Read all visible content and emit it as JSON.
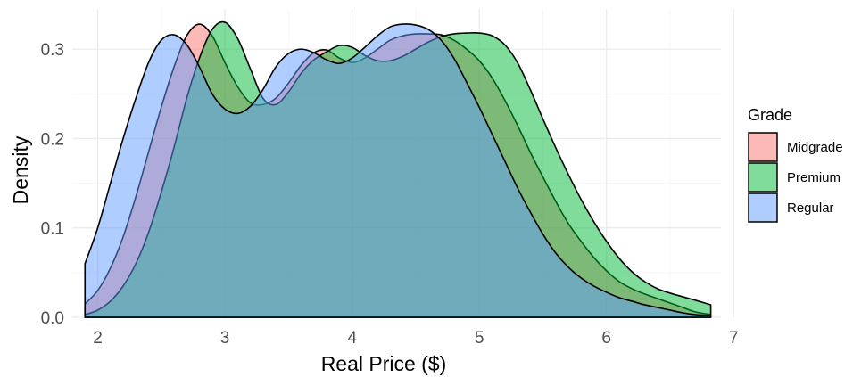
{
  "chart_data": {
    "type": "area",
    "subtype": "density",
    "title": "",
    "xlabel": "Real Price ($)",
    "ylabel": "Density",
    "xlim": [
      1.8,
      6.9
    ],
    "ylim": [
      0,
      0.345
    ],
    "x_ticks": [
      2,
      3,
      4,
      5,
      6,
      7
    ],
    "y_ticks": [
      0.0,
      0.1,
      0.2,
      0.3
    ],
    "y_tick_labels": [
      "0.0",
      "0.1",
      "0.2",
      "0.3"
    ],
    "grid": true,
    "legend": {
      "title": "Grade",
      "position": "right"
    },
    "fill_opacity": 0.5,
    "series": [
      {
        "name": "Midgrade",
        "color": "#F8766D",
        "x": [
          1.9,
          2.0,
          2.1,
          2.2,
          2.3,
          2.4,
          2.5,
          2.6,
          2.7,
          2.8,
          2.9,
          3.0,
          3.1,
          3.2,
          3.3,
          3.4,
          3.5,
          3.6,
          3.7,
          3.8,
          3.9,
          4.0,
          4.1,
          4.2,
          4.3,
          4.4,
          4.5,
          4.6,
          4.7,
          4.8,
          4.9,
          5.0,
          5.1,
          5.2,
          5.3,
          5.4,
          5.5,
          5.6,
          5.7,
          5.8,
          5.9,
          6.0,
          6.1,
          6.2,
          6.3,
          6.4,
          6.5,
          6.6,
          6.7,
          6.82
        ],
        "y": [
          0.015,
          0.03,
          0.055,
          0.09,
          0.135,
          0.185,
          0.235,
          0.28,
          0.315,
          0.328,
          0.315,
          0.285,
          0.258,
          0.24,
          0.238,
          0.245,
          0.262,
          0.282,
          0.296,
          0.299,
          0.29,
          0.285,
          0.29,
          0.3,
          0.31,
          0.315,
          0.317,
          0.317,
          0.316,
          0.31,
          0.3,
          0.287,
          0.268,
          0.243,
          0.215,
          0.185,
          0.157,
          0.13,
          0.105,
          0.085,
          0.067,
          0.052,
          0.04,
          0.032,
          0.026,
          0.021,
          0.016,
          0.011,
          0.006,
          0.003
        ]
      },
      {
        "name": "Premium",
        "color": "#00BA38",
        "x": [
          1.9,
          2.0,
          2.1,
          2.2,
          2.3,
          2.4,
          2.5,
          2.6,
          2.7,
          2.8,
          2.9,
          3.0,
          3.1,
          3.2,
          3.3,
          3.4,
          3.5,
          3.6,
          3.7,
          3.8,
          3.9,
          4.0,
          4.1,
          4.2,
          4.3,
          4.4,
          4.5,
          4.6,
          4.7,
          4.8,
          4.9,
          5.0,
          5.1,
          5.2,
          5.3,
          5.4,
          5.5,
          5.6,
          5.7,
          5.8,
          5.9,
          6.0,
          6.1,
          6.2,
          6.3,
          6.4,
          6.5,
          6.6,
          6.7,
          6.82
        ],
        "y": [
          0.003,
          0.008,
          0.018,
          0.035,
          0.06,
          0.095,
          0.14,
          0.19,
          0.245,
          0.29,
          0.322,
          0.33,
          0.312,
          0.278,
          0.245,
          0.238,
          0.252,
          0.273,
          0.288,
          0.297,
          0.304,
          0.302,
          0.293,
          0.287,
          0.287,
          0.292,
          0.3,
          0.308,
          0.314,
          0.317,
          0.318,
          0.318,
          0.315,
          0.305,
          0.285,
          0.255,
          0.222,
          0.19,
          0.16,
          0.132,
          0.107,
          0.085,
          0.066,
          0.051,
          0.04,
          0.032,
          0.027,
          0.023,
          0.019,
          0.014
        ]
      },
      {
        "name": "Regular",
        "color": "#619CFF",
        "x": [
          1.9,
          2.0,
          2.1,
          2.2,
          2.3,
          2.4,
          2.5,
          2.6,
          2.7,
          2.8,
          2.9,
          3.0,
          3.1,
          3.2,
          3.3,
          3.4,
          3.5,
          3.6,
          3.7,
          3.8,
          3.9,
          4.0,
          4.1,
          4.2,
          4.3,
          4.4,
          4.5,
          4.6,
          4.7,
          4.8,
          4.9,
          5.0,
          5.1,
          5.2,
          5.3,
          5.4,
          5.5,
          5.6,
          5.7,
          5.8,
          5.9,
          6.0,
          6.1,
          6.2,
          6.3,
          6.4,
          6.5,
          6.6,
          6.7,
          6.82
        ],
        "y": [
          0.06,
          0.1,
          0.15,
          0.2,
          0.245,
          0.285,
          0.31,
          0.316,
          0.305,
          0.28,
          0.25,
          0.233,
          0.228,
          0.236,
          0.255,
          0.28,
          0.295,
          0.3,
          0.296,
          0.288,
          0.284,
          0.29,
          0.302,
          0.315,
          0.325,
          0.328,
          0.327,
          0.322,
          0.31,
          0.29,
          0.263,
          0.235,
          0.205,
          0.175,
          0.145,
          0.118,
          0.093,
          0.072,
          0.056,
          0.044,
          0.035,
          0.028,
          0.022,
          0.018,
          0.014,
          0.011,
          0.008,
          0.005,
          0.003,
          0.002
        ]
      }
    ]
  }
}
